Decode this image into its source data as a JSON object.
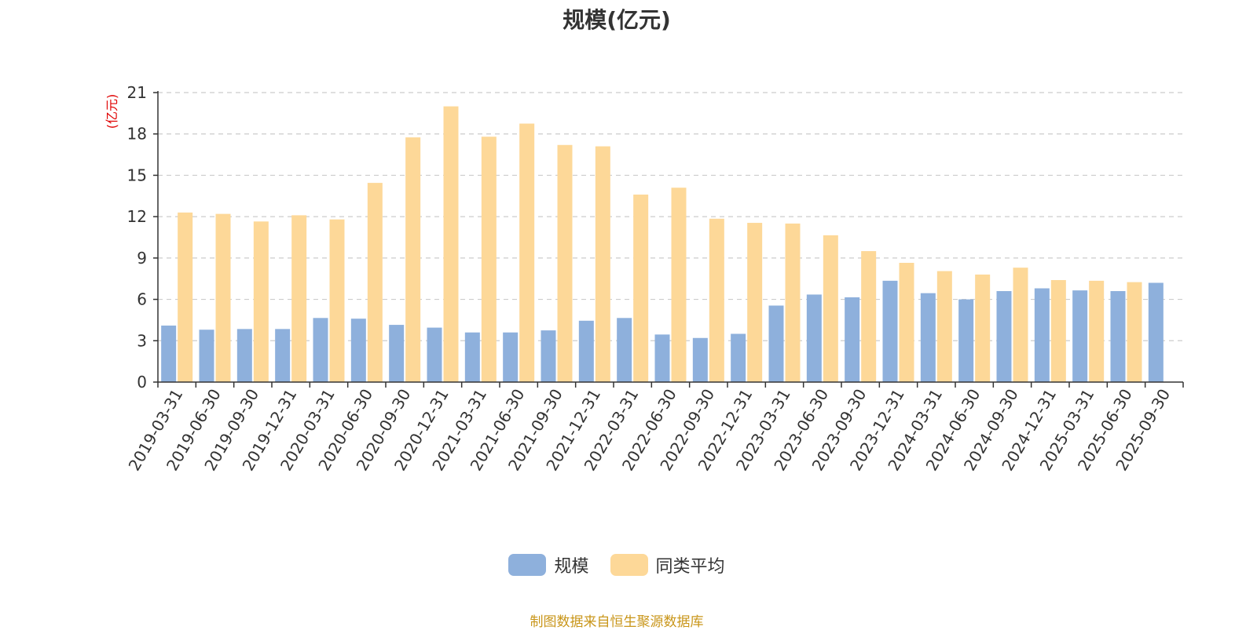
{
  "chart_data": {
    "type": "bar",
    "title": "规模(亿元)",
    "ylabel": "(亿元)",
    "ylim": [
      0,
      21
    ],
    "yticks": [
      0,
      3,
      6,
      9,
      12,
      15,
      18,
      21
    ],
    "grid": true,
    "legend_position": "bottom",
    "categories": [
      "2019-03-31",
      "2019-06-30",
      "2019-09-30",
      "2019-12-31",
      "2020-03-31",
      "2020-06-30",
      "2020-09-30",
      "2020-12-31",
      "2021-03-31",
      "2021-06-30",
      "2021-09-30",
      "2021-12-31",
      "2022-03-31",
      "2022-06-30",
      "2022-09-30",
      "2022-12-31",
      "2023-03-31",
      "2023-06-30",
      "2023-09-30",
      "2023-12-31",
      "2024-03-31",
      "2024-06-30",
      "2024-09-30",
      "2024-12-31",
      "2025-03-31",
      "2025-06-30",
      "2025-09-30"
    ],
    "series": [
      {
        "name": "规模",
        "color": "#8eb0dc",
        "values": [
          4.1,
          3.8,
          3.85,
          3.85,
          4.65,
          4.6,
          4.15,
          3.95,
          3.6,
          3.6,
          3.75,
          4.45,
          4.65,
          3.45,
          3.2,
          3.5,
          5.55,
          6.35,
          6.15,
          7.35,
          6.45,
          6.0,
          6.6,
          6.8,
          6.65,
          6.6,
          7.2
        ]
      },
      {
        "name": "同类平均",
        "color": "#fdd898",
        "values": [
          12.3,
          12.2,
          11.65,
          12.1,
          11.8,
          14.45,
          17.75,
          20.0,
          17.8,
          18.75,
          17.2,
          17.1,
          13.6,
          14.1,
          11.85,
          11.55,
          11.5,
          10.65,
          9.5,
          8.65,
          8.05,
          7.8,
          8.3,
          7.4,
          7.35,
          7.25,
          null
        ]
      }
    ]
  },
  "source_text": "制图数据来自恒生聚源数据库"
}
